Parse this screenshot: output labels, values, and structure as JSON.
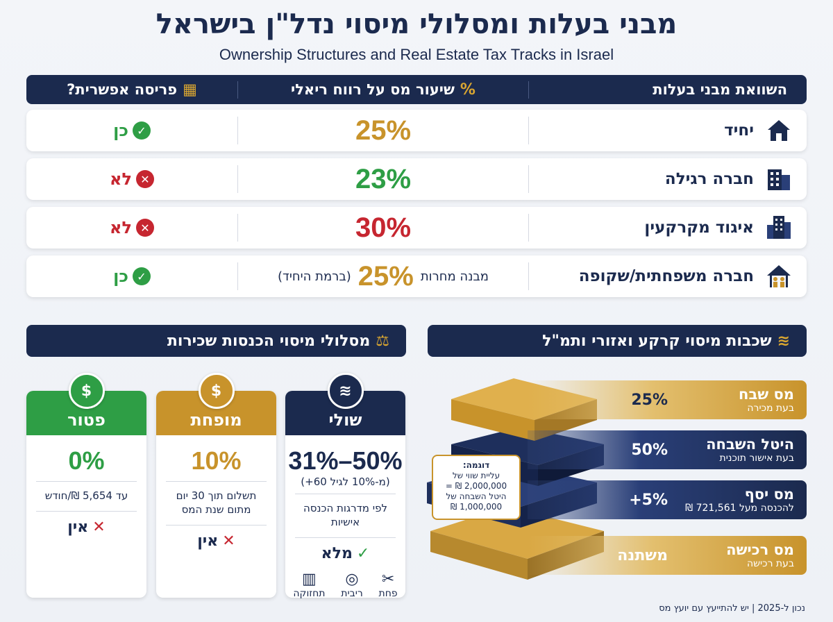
{
  "title": "מבני בעלות ומסלולי מיסוי נדל\"ן בישראל",
  "subtitle": "Ownership Structures and Real Estate Tax Tracks in Israel",
  "colors": {
    "navy": "#1b2a4e",
    "gold": "#c8932b",
    "green": "#2e9e45",
    "red": "#c62630"
  },
  "comparison": {
    "headers": {
      "structure": "השוואת מבני בעלות",
      "rate": "שיעור מס על רווח ריאלי",
      "spread": "פריסה אפשרית?"
    },
    "rows": [
      {
        "name": "יחיד",
        "icon": "house-icon",
        "rate": "25%",
        "rate_color": "#c8932b",
        "note_left": "",
        "note_right": "",
        "spread": "כן",
        "spread_ok": true
      },
      {
        "name": "חברה רגילה",
        "icon": "building-icon",
        "rate": "23%",
        "rate_color": "#2e9e45",
        "note_left": "",
        "note_right": "",
        "spread": "לא",
        "spread_ok": false
      },
      {
        "name": "איגוד מקרקעין",
        "icon": "tower-icon",
        "rate": "30%",
        "rate_color": "#c62630",
        "note_left": "",
        "note_right": "",
        "spread": "לא",
        "spread_ok": false
      },
      {
        "name": "חברה משפחתית/שקופה",
        "icon": "family-house-icon",
        "rate": "25%",
        "rate_color": "#c8932b",
        "note_left": "מבנה מחרות",
        "note_right": "(ברמת היחיד)",
        "spread": "כן",
        "spread_ok": true
      }
    ]
  },
  "rental": {
    "header": "מסלולי מיסוי הכנסות שכירות",
    "cards": [
      {
        "title": "שולי",
        "color": "#1b2a4e",
        "icon": "layers-icon",
        "rate": "31%–50%",
        "sub": "(מ-10% לגיל 60+)",
        "desc": "לפי מדרגות הכנסה אישיות",
        "deduct": "מלא",
        "deduct_ok": true,
        "expenses": [
          {
            "label": "פחת",
            "icon": "wrench-icon"
          },
          {
            "label": "ריבית",
            "icon": "coins-icon"
          },
          {
            "label": "תחזוקה",
            "icon": "chart-icon"
          }
        ]
      },
      {
        "title": "מופחת",
        "color": "#c8932b",
        "icon": "money-hand-icon",
        "rate": "10%",
        "sub": "",
        "desc": "תשלום תוך 30 יום מתום שנת המס",
        "deduct": "אין",
        "deduct_ok": false,
        "expenses": []
      },
      {
        "title": "פטור",
        "color": "#2e9e45",
        "icon": "money-hand-icon",
        "rate": "0%",
        "sub": "",
        "desc": "עד 5,654 ₪/חודש",
        "deduct": "אין",
        "deduct_ok": false,
        "expenses": []
      }
    ]
  },
  "layers": {
    "header": "שכבות מיסוי קרקע ואזורי ותמ\"ל",
    "items": [
      {
        "title": "מס שבח",
        "sub": "בעת מכירה",
        "value": "25%"
      },
      {
        "title": "היטל השבחה",
        "sub": "בעת אישור תוכנית",
        "value": "50%"
      },
      {
        "title": "מס יסף",
        "sub": "להכנסה מעל 721,561 ₪",
        "value": "+5%"
      },
      {
        "title": "מס רכישה",
        "sub": "בעת רכישה",
        "value": "משתנה"
      }
    ],
    "example": {
      "title": "דוגמה:",
      "line1": "עליית שווי של",
      "line2": "2,000,000 ₪ =",
      "line3": "היטל השבחה של",
      "line4": "1,000,000 ₪"
    }
  },
  "footer": "נכון ל-2025 | יש להתייעץ עם יועץ מס"
}
